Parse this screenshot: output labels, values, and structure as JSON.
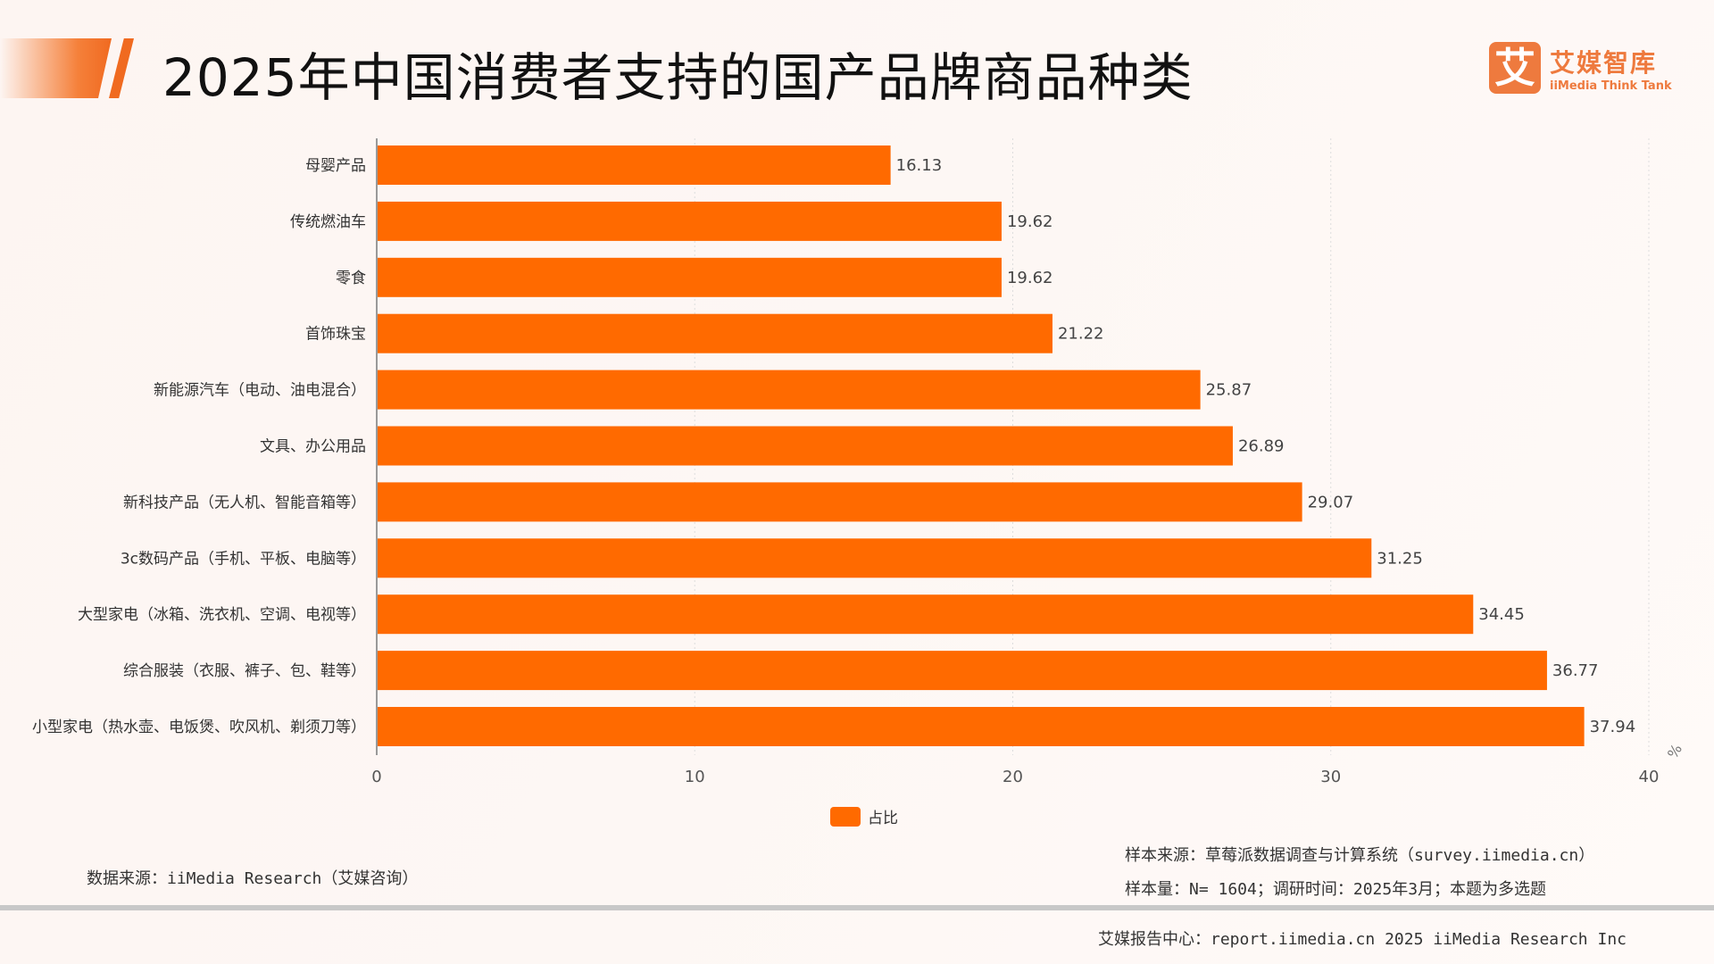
{
  "header": {
    "title": "2025年中国消费者支持的国产品牌商品种类"
  },
  "logo": {
    "mark": "艾",
    "cn": "艾媒智库",
    "en": "iiMedia Think Tank"
  },
  "chart_data": {
    "type": "bar",
    "orientation": "horizontal",
    "categories": [
      "母婴产品",
      "传统燃油车",
      "零食",
      "首饰珠宝",
      "新能源汽车（电动、油电混合）",
      "文具、办公用品",
      "新科技产品（无人机、智能音箱等）",
      "3c数码产品（手机、平板、电脑等）",
      "大型家电（冰箱、洗衣机、空调、电视等）",
      "综合服装（衣服、裤子、包、鞋等）",
      "小型家电（热水壶、电饭煲、吹风机、剃须刀等）"
    ],
    "series": [
      {
        "name": "占比",
        "values": [
          16.13,
          19.62,
          19.62,
          21.22,
          25.87,
          26.89,
          29.07,
          31.25,
          34.45,
          36.77,
          37.94
        ],
        "color": "#ff6a00"
      }
    ],
    "xlim": [
      0,
      40
    ],
    "xticks": [
      0,
      10,
      20,
      30,
      40
    ],
    "xunit": "%",
    "grid": "vertical dotted",
    "legend": "bottom-center"
  },
  "footer": {
    "data_source": "数据来源：iiMedia Research（艾媒咨询）",
    "sample_source": "样本来源：草莓派数据调查与计算系统（survey.iimedia.cn）",
    "sample_size": "样本量：N= 1604；调研时间：2025年3月；本题为多选题",
    "report_center": "艾媒报告中心：report.iimedia.cn   2025 iiMedia Research Inc"
  }
}
